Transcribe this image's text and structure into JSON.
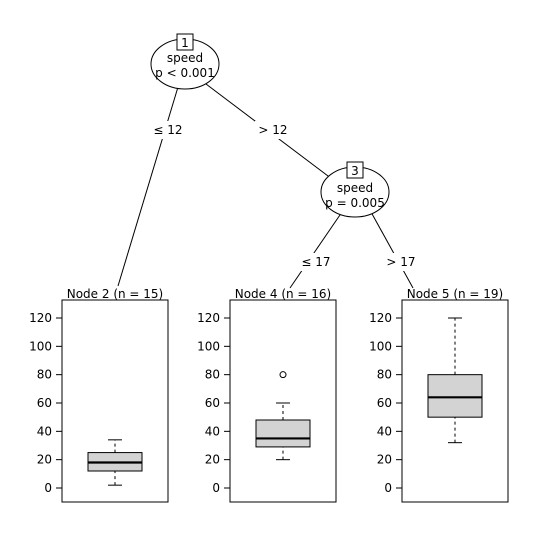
{
  "tree": {
    "inner_nodes": [
      {
        "id": "1",
        "variable": "speed",
        "pvalue": "p < 0.001"
      },
      {
        "id": "3",
        "variable": "speed",
        "pvalue": "p = 0.005"
      }
    ],
    "edges": [
      {
        "from": "1",
        "to": "2",
        "label": "≤ 12"
      },
      {
        "from": "1",
        "to": "3",
        "label": "> 12"
      },
      {
        "from": "3",
        "to": "4",
        "label": "≤ 17"
      },
      {
        "from": "3",
        "to": "5",
        "label": "> 17"
      }
    ],
    "terminal_nodes": [
      {
        "id": "2",
        "title": "Node 2 (n = 15)",
        "box": {
          "min": 2,
          "q1": 12,
          "median": 18,
          "q3": 25,
          "max": 34,
          "outliers": []
        }
      },
      {
        "id": "4",
        "title": "Node 4 (n = 16)",
        "box": {
          "min": 20,
          "q1": 29,
          "median": 35,
          "q3": 48,
          "max": 60,
          "outliers": [
            80
          ]
        }
      },
      {
        "id": "5",
        "title": "Node 5 (n = 19)",
        "box": {
          "min": 32,
          "q1": 50,
          "median": 64,
          "q3": 80,
          "max": 120,
          "outliers": []
        }
      }
    ],
    "y_axis": {
      "min": 0,
      "max": 120,
      "ticks": [
        "0",
        "20",
        "40",
        "60",
        "80",
        "100",
        "120"
      ]
    },
    "colors": {
      "box_fill": "#d3d3d3",
      "stroke": "#000000",
      "background": "#ffffff"
    }
  }
}
